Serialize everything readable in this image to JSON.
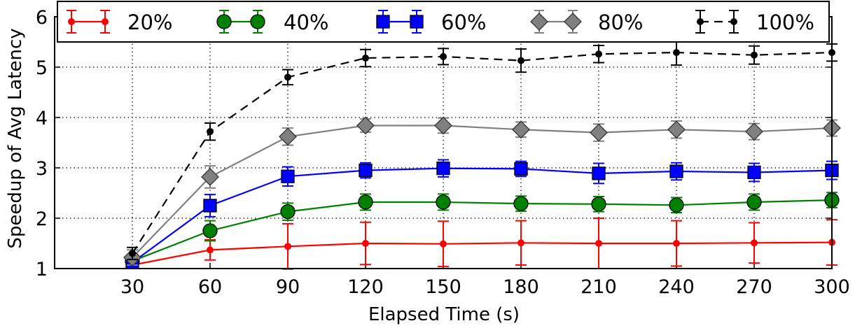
{
  "chart_data": {
    "type": "line",
    "xlabel": "Elapsed Time (s)",
    "ylabel": "Speedup of Avg Latency",
    "xlim": [
      0,
      300
    ],
    "ylim": [
      1,
      6
    ],
    "x_ticks": [
      30,
      60,
      90,
      120,
      150,
      180,
      210,
      240,
      270,
      300
    ],
    "y_ticks": [
      1,
      2,
      3,
      4,
      5,
      6
    ],
    "grid": true,
    "legend_position": "top",
    "series": [
      {
        "name": "20%",
        "color": "#ff0000",
        "marker": "circle-small",
        "linestyle": "solid",
        "x": [
          30,
          60,
          90,
          120,
          150,
          180,
          210,
          240,
          270,
          300
        ],
        "y": [
          1.07,
          1.37,
          1.44,
          1.5,
          1.49,
          1.51,
          1.5,
          1.5,
          1.51,
          1.52
        ],
        "err": [
          0.05,
          0.2,
          0.45,
          0.42,
          0.45,
          0.44,
          0.5,
          0.45,
          0.4,
          0.45
        ]
      },
      {
        "name": "40%",
        "color": "#008000",
        "marker": "circle",
        "linestyle": "solid",
        "x": [
          30,
          60,
          90,
          120,
          150,
          180,
          210,
          240,
          270,
          300
        ],
        "y": [
          1.15,
          1.75,
          2.13,
          2.32,
          2.32,
          2.29,
          2.28,
          2.26,
          2.32,
          2.36
        ],
        "err": [
          0.1,
          0.2,
          0.17,
          0.16,
          0.16,
          0.15,
          0.15,
          0.15,
          0.16,
          0.15
        ]
      },
      {
        "name": "60%",
        "color": "#0000ff",
        "marker": "square",
        "linestyle": "solid",
        "x": [
          30,
          60,
          90,
          120,
          150,
          180,
          210,
          240,
          270,
          300
        ],
        "y": [
          1.12,
          2.25,
          2.83,
          2.95,
          2.99,
          2.98,
          2.89,
          2.93,
          2.91,
          2.95
        ],
        "err": [
          0.1,
          0.22,
          0.19,
          0.15,
          0.17,
          0.15,
          0.2,
          0.17,
          0.18,
          0.18
        ]
      },
      {
        "name": "80%",
        "color": "#808080",
        "marker": "diamond",
        "linestyle": "solid",
        "x": [
          30,
          60,
          90,
          120,
          150,
          180,
          210,
          240,
          270,
          300
        ],
        "y": [
          1.22,
          2.82,
          3.62,
          3.84,
          3.84,
          3.76,
          3.7,
          3.76,
          3.72,
          3.79
        ],
        "err": [
          0.15,
          0.22,
          0.17,
          0.13,
          0.15,
          0.15,
          0.17,
          0.17,
          0.16,
          0.16
        ]
      },
      {
        "name": "100%",
        "color": "#000000",
        "marker": "dot",
        "linestyle": "dashed",
        "x": [
          30,
          60,
          90,
          120,
          150,
          180,
          210,
          240,
          270,
          300
        ],
        "y": [
          1.3,
          3.72,
          4.8,
          5.18,
          5.21,
          5.13,
          5.26,
          5.29,
          5.24,
          5.29
        ],
        "err": [
          0.12,
          0.17,
          0.15,
          0.17,
          0.16,
          0.23,
          0.17,
          0.25,
          0.18,
          0.17
        ]
      }
    ]
  }
}
